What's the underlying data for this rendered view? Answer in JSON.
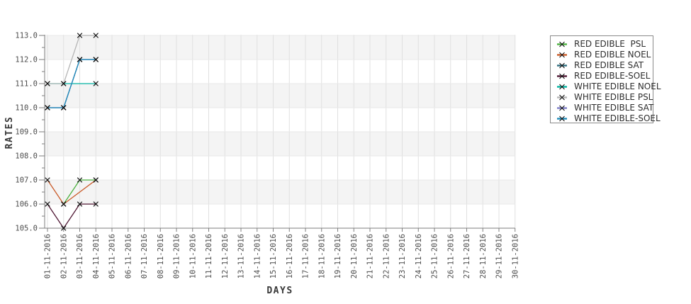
{
  "chart_data": {
    "type": "line",
    "title": "",
    "xlabel": "DAYS",
    "ylabel": "RATES",
    "x_categories": [
      "01-11-2016",
      "02-11-2016",
      "03-11-2016",
      "04-11-2016",
      "05-11-2016",
      "06-11-2016",
      "07-11-2016",
      "08-11-2016",
      "09-11-2016",
      "10-11-2016",
      "11-11-2016",
      "12-11-2016",
      "13-11-2016",
      "14-11-2016",
      "15-11-2016",
      "16-11-2016",
      "17-11-2016",
      "18-11-2016",
      "19-11-2016",
      "20-11-2016",
      "21-11-2016",
      "22-11-2016",
      "23-11-2016",
      "24-11-2016",
      "25-11-2016",
      "26-11-2016",
      "27-11-2016",
      "28-11-2016",
      "29-11-2016",
      "30-11-2016"
    ],
    "ylim": [
      105.0,
      113.0
    ],
    "y_tick_step": 1.0,
    "grid": "on",
    "bands": "alternating horizontal bands (106-107, 108-109, 110-111, 112-113 shaded)",
    "legend_position": "right",
    "marker": "x",
    "marker_color": "#111111",
    "band_color": "#f4f4f4",
    "series": [
      {
        "name": "RED EDIBLE  PSL",
        "color": "#4cb140",
        "points": [
          [
            "02-11-2016",
            106.0
          ],
          [
            "03-11-2016",
            107.0
          ],
          [
            "04-11-2016",
            107.0
          ]
        ]
      },
      {
        "name": "RED EDIBLE NOEL",
        "color": "#c95a28",
        "points": [
          [
            "01-11-2016",
            107.0
          ],
          [
            "02-11-2016",
            106.0
          ],
          [
            "04-11-2016",
            107.0
          ]
        ]
      },
      {
        "name": "RED EDIBLE SAT",
        "color": "#2e6d7f",
        "points": [
          [
            "01-11-2016",
            110.0
          ],
          [
            "02-11-2016",
            110.0
          ],
          [
            "03-11-2016",
            112.0
          ],
          [
            "04-11-2016",
            112.0
          ]
        ]
      },
      {
        "name": "RED EDIBLE-SOEL",
        "color": "#4f1733",
        "points": [
          [
            "01-11-2016",
            106.0
          ],
          [
            "02-11-2016",
            105.0
          ],
          [
            "03-11-2016",
            106.0
          ],
          [
            "04-11-2016",
            106.0
          ]
        ]
      },
      {
        "name": "WHITE EDIBLE NOEL",
        "color": "#00b2a0",
        "points": [
          [
            "01-11-2016",
            111.0
          ],
          [
            "02-11-2016",
            111.0
          ],
          [
            "04-11-2016",
            111.0
          ]
        ]
      },
      {
        "name": "WHITE EDIBLE PSL",
        "color": "#b5b5b5",
        "points": [
          [
            "01-11-2016",
            111.0
          ],
          [
            "02-11-2016",
            111.0
          ],
          [
            "03-11-2016",
            113.0
          ],
          [
            "04-11-2016",
            113.0
          ]
        ]
      },
      {
        "name": "WHITE EDIBLE SAT",
        "color": "#7e7ec8",
        "points": [
          [
            "01-11-2016",
            110.0
          ],
          [
            "02-11-2016",
            110.0
          ],
          [
            "03-11-2016",
            112.0
          ],
          [
            "04-11-2016",
            112.0
          ]
        ]
      },
      {
        "name": "WHITE EDIBLE-SOEL",
        "color": "#1f8cba",
        "points": [
          [
            "01-11-2016",
            110.0
          ],
          [
            "02-11-2016",
            110.0
          ],
          [
            "03-11-2016",
            112.0
          ],
          [
            "04-11-2016",
            112.0
          ]
        ]
      }
    ]
  }
}
